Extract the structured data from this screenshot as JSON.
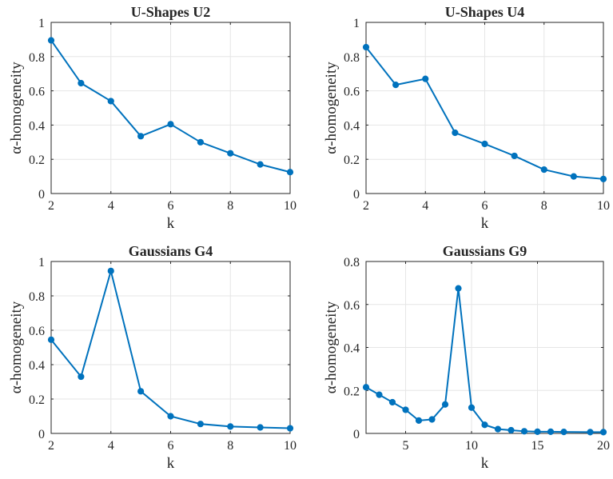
{
  "chart_data": [
    {
      "type": "line",
      "title": "U-Shapes U2",
      "xlabel": "k",
      "ylabel": "α-homogeneity",
      "xlim": [
        2,
        10
      ],
      "ylim": [
        0,
        1
      ],
      "xticks": [
        2,
        4,
        6,
        8,
        10
      ],
      "yticks": [
        0,
        0.2,
        0.4,
        0.6,
        0.8,
        1
      ],
      "x_tick_labels": [
        "2",
        "4",
        "6",
        "8",
        "10"
      ],
      "y_tick_labels": [
        "0",
        "0.2",
        "0.4",
        "0.6",
        "0.8",
        "1"
      ],
      "grid": true,
      "color": "#0072BD",
      "x": [
        2,
        3,
        4,
        5,
        6,
        7,
        8,
        9,
        10
      ],
      "y": [
        0.895,
        0.645,
        0.54,
        0.335,
        0.405,
        0.3,
        0.235,
        0.17,
        0.125
      ]
    },
    {
      "type": "line",
      "title": "U-Shapes U4",
      "xlabel": "k",
      "ylabel": "α-homogeneity",
      "xlim": [
        2,
        10
      ],
      "ylim": [
        0,
        1
      ],
      "xticks": [
        2,
        4,
        6,
        8,
        10
      ],
      "yticks": [
        0,
        0.2,
        0.4,
        0.6,
        0.8,
        1
      ],
      "x_tick_labels": [
        "2",
        "4",
        "6",
        "8",
        "10"
      ],
      "y_tick_labels": [
        "0",
        "0.2",
        "0.4",
        "0.6",
        "0.8",
        "1"
      ],
      "grid": true,
      "color": "#0072BD",
      "x": [
        2,
        3,
        4,
        5,
        6,
        7,
        8,
        9,
        10
      ],
      "y": [
        0.855,
        0.635,
        0.67,
        0.355,
        0.29,
        0.22,
        0.14,
        0.1,
        0.085
      ]
    },
    {
      "type": "line",
      "title": "Gaussians G4",
      "xlabel": "k",
      "ylabel": "α-homogeneity",
      "xlim": [
        2,
        10
      ],
      "ylim": [
        0,
        1
      ],
      "xticks": [
        2,
        4,
        6,
        8,
        10
      ],
      "yticks": [
        0,
        0.2,
        0.4,
        0.6,
        0.8,
        1
      ],
      "x_tick_labels": [
        "2",
        "4",
        "6",
        "8",
        "10"
      ],
      "y_tick_labels": [
        "0",
        "0.2",
        "0.4",
        "0.6",
        "0.8",
        "1"
      ],
      "grid": true,
      "color": "#0072BD",
      "x": [
        2,
        3,
        4,
        5,
        6,
        7,
        8,
        9,
        10
      ],
      "y": [
        0.545,
        0.33,
        0.945,
        0.245,
        0.1,
        0.055,
        0.04,
        0.035,
        0.03
      ]
    },
    {
      "type": "line",
      "title": "Gaussians G9",
      "xlabel": "k",
      "ylabel": "α-homogeneity",
      "xlim": [
        2,
        20
      ],
      "ylim": [
        0,
        0.8
      ],
      "xticks": [
        5,
        10,
        15,
        20
      ],
      "yticks": [
        0,
        0.2,
        0.4,
        0.6,
        0.8
      ],
      "x_tick_labels": [
        "5",
        "10",
        "15",
        "20"
      ],
      "y_tick_labels": [
        "0",
        "0.2",
        "0.4",
        "0.6",
        "0.8"
      ],
      "grid": true,
      "color": "#0072BD",
      "x": [
        2,
        3,
        4,
        5,
        6,
        7,
        8,
        9,
        10,
        11,
        12,
        13,
        14,
        15,
        16,
        17,
        19,
        20
      ],
      "y": [
        0.215,
        0.18,
        0.145,
        0.11,
        0.06,
        0.065,
        0.135,
        0.675,
        0.12,
        0.04,
        0.02,
        0.015,
        0.01,
        0.008,
        0.008,
        0.007,
        0.006,
        0.006
      ]
    }
  ]
}
